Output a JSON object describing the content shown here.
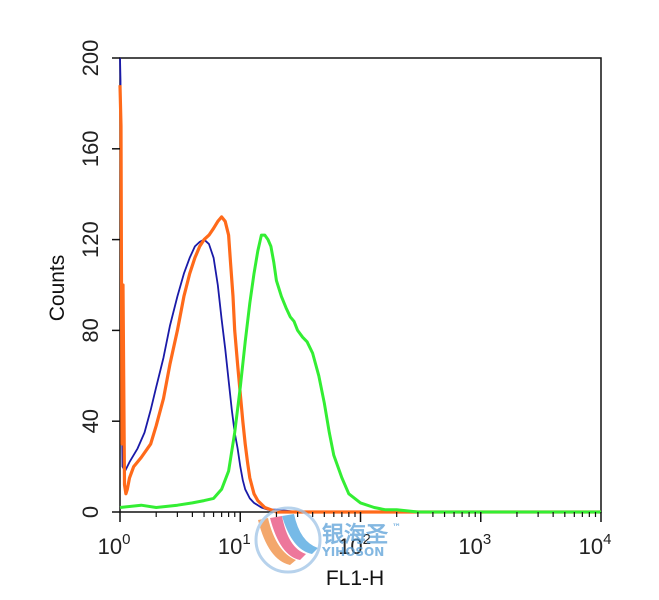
{
  "chart_data": {
    "type": "line",
    "xlabel": "FL1-H",
    "ylabel": "Counts",
    "x_scale": "log",
    "xlim": [
      1,
      10000
    ],
    "ylim": [
      0,
      200
    ],
    "x_ticks": [
      {
        "base": "10",
        "exp": "0"
      },
      {
        "base": "10",
        "exp": "1"
      },
      {
        "base": "10",
        "exp": "2"
      },
      {
        "base": "10",
        "exp": "3"
      },
      {
        "base": "10",
        "exp": "4"
      }
    ],
    "y_ticks": [
      "0",
      "40",
      "80",
      "120",
      "160",
      "200"
    ],
    "y_tick_values": [
      0,
      40,
      80,
      120,
      160,
      200
    ],
    "grid": false,
    "legend": "none",
    "series": [
      {
        "color": "#1a1aa8",
        "x": [
          1.0,
          1.01,
          1.03,
          1.05,
          1.1,
          1.2,
          1.4,
          1.6,
          1.8,
          2.0,
          2.3,
          2.6,
          3.0,
          3.4,
          3.8,
          4.2,
          4.6,
          5.0,
          5.5,
          6.0,
          6.5,
          7.0,
          7.5,
          8.0,
          8.5,
          9.0,
          9.5,
          10.0,
          10.5,
          11.0,
          12.0,
          13.0,
          14.0,
          15.0,
          17.0,
          20.0,
          30.0,
          100.0,
          10000.0
        ],
        "y": [
          200,
          190,
          60,
          20,
          18,
          22,
          28,
          35,
          45,
          55,
          68,
          82,
          95,
          105,
          112,
          117,
          119,
          120,
          118,
          112,
          100,
          85,
          72,
          58,
          45,
          35,
          28,
          20,
          14,
          10,
          6,
          4,
          3,
          2,
          1,
          1,
          0,
          0,
          0
        ]
      },
      {
        "color": "#ff6a1a",
        "x": [
          1.0,
          1.02,
          1.04,
          1.06,
          1.09,
          1.12,
          1.15,
          1.2,
          1.3,
          1.5,
          1.8,
          2.0,
          2.3,
          2.6,
          3.0,
          3.4,
          3.8,
          4.2,
          4.6,
          5.0,
          5.5,
          6.0,
          6.5,
          7.0,
          7.5,
          8.0,
          8.3,
          8.7,
          9.0,
          9.5,
          10.0,
          10.5,
          11.0,
          11.5,
          12.0,
          13.0,
          14.0,
          16.0,
          18.0,
          20.0,
          30.0,
          100.0,
          10000.0
        ],
        "y": [
          188,
          170,
          30,
          100,
          12,
          8,
          10,
          15,
          20,
          24,
          30,
          38,
          50,
          65,
          80,
          95,
          105,
          112,
          117,
          120,
          122,
          125,
          128,
          130,
          128,
          122,
          110,
          95,
          80,
          65,
          52,
          40,
          30,
          22,
          15,
          8,
          5,
          2,
          1,
          0,
          0,
          0,
          0
        ]
      },
      {
        "color": "#33ee33",
        "x": [
          1.0,
          1.5,
          2.0,
          3.0,
          4.0,
          5.0,
          6.0,
          7.0,
          8.0,
          9.0,
          10.0,
          11.0,
          12.0,
          13.0,
          14.0,
          15.0,
          16.0,
          17.0,
          18.0,
          19.0,
          20.0,
          22.0,
          24.0,
          26.0,
          28.0,
          30.0,
          33.0,
          36.0,
          40.0,
          45.0,
          50.0,
          55.0,
          60.0,
          70.0,
          80.0,
          100.0,
          130.0,
          160.0,
          200.0,
          300.0,
          10000.0
        ],
        "y": [
          2,
          3,
          2,
          3,
          4,
          5,
          6,
          10,
          18,
          35,
          55,
          75,
          92,
          105,
          115,
          122,
          122,
          120,
          117,
          110,
          102,
          95,
          90,
          86,
          84,
          80,
          77,
          75,
          70,
          60,
          48,
          35,
          25,
          15,
          8,
          4,
          2,
          1,
          1,
          0,
          0
        ]
      }
    ]
  },
  "watermark": {
    "line1": "银海圣",
    "line2": "YIHOSON",
    "tm": "™"
  }
}
